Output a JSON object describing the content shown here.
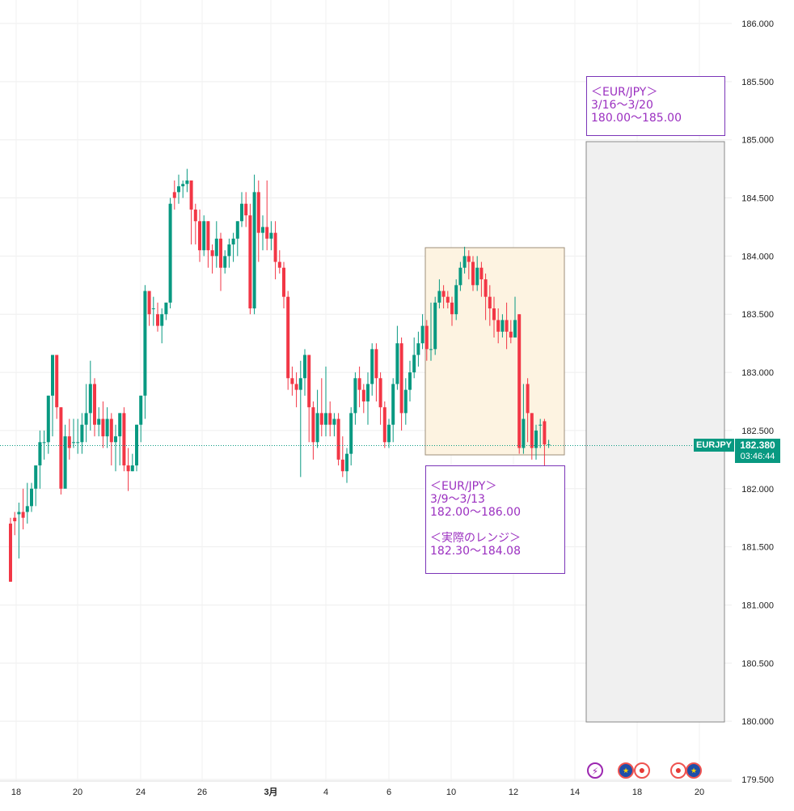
{
  "chart_data": {
    "type": "candlestick",
    "symbol": "EURJPY",
    "last_price": "182.380",
    "countdown": "03:46:44",
    "ylim": [
      179.5,
      186.0
    ],
    "y_ticks": [
      "186.000",
      "185.500",
      "185.000",
      "184.500",
      "184.000",
      "183.500",
      "183.000",
      "182.500",
      "182.000",
      "181.500",
      "181.000",
      "180.500",
      "180.000",
      "179.500"
    ],
    "x_ticks": [
      "18",
      "20",
      "24",
      "26",
      "3月",
      "4",
      "6",
      "10",
      "12",
      "14",
      "18",
      "20"
    ],
    "candles": [
      [
        181.7,
        181.2,
        181.75,
        181.2
      ],
      [
        181.75,
        181.72,
        181.8,
        181.6
      ],
      [
        181.78,
        181.8,
        181.88,
        181.4
      ],
      [
        181.8,
        181.75,
        182.0,
        181.65
      ],
      [
        181.8,
        181.85,
        182.05,
        181.7
      ],
      [
        181.85,
        182.0,
        182.05,
        181.8
      ],
      [
        182.0,
        182.2,
        182.2,
        181.85
      ],
      [
        182.2,
        182.4,
        182.5,
        182.0
      ],
      [
        182.4,
        182.4,
        182.5,
        182.25
      ],
      [
        182.4,
        182.8,
        182.8,
        182.3
      ],
      [
        182.8,
        183.15,
        183.15,
        182.45
      ],
      [
        183.15,
        182.7,
        183.15,
        182.6
      ],
      [
        182.7,
        182.0,
        182.7,
        181.95
      ],
      [
        182.0,
        182.45,
        182.55,
        182.05
      ],
      [
        182.45,
        182.35,
        182.6,
        182.25
      ],
      [
        182.4,
        182.4,
        182.6,
        182.35
      ],
      [
        182.4,
        182.4,
        182.6,
        182.3
      ],
      [
        182.4,
        182.55,
        182.65,
        182.3
      ],
      [
        182.55,
        182.65,
        182.9,
        182.4
      ],
      [
        182.65,
        182.9,
        183.1,
        182.5
      ],
      [
        182.9,
        182.55,
        182.95,
        182.45
      ],
      [
        182.55,
        182.6,
        182.7,
        182.45
      ],
      [
        182.6,
        182.45,
        182.75,
        182.35
      ],
      [
        182.45,
        182.6,
        182.7,
        182.35
      ],
      [
        182.6,
        182.4,
        182.65,
        182.2
      ],
      [
        182.4,
        182.45,
        182.55,
        182.15
      ],
      [
        182.45,
        182.65,
        182.65,
        182.2
      ],
      [
        182.65,
        182.2,
        182.7,
        182.15
      ],
      [
        182.2,
        182.15,
        182.35,
        181.98
      ],
      [
        182.15,
        182.2,
        182.3,
        182.15
      ],
      [
        182.2,
        182.55,
        182.55,
        182.15
      ],
      [
        182.55,
        182.8,
        182.8,
        182.4
      ],
      [
        182.8,
        183.7,
        183.75,
        182.6
      ],
      [
        183.7,
        183.5,
        183.7,
        183.4
      ],
      [
        183.55,
        183.55,
        183.65,
        183.4
      ],
      [
        183.5,
        183.4,
        183.6,
        183.35
      ],
      [
        183.4,
        183.5,
        183.55,
        183.25
      ],
      [
        183.5,
        183.6,
        183.6,
        183.45
      ],
      [
        183.6,
        184.45,
        184.5,
        183.55
      ],
      [
        184.55,
        184.5,
        184.65,
        184.4
      ],
      [
        184.55,
        184.6,
        184.7,
        184.45
      ],
      [
        184.6,
        184.62,
        184.65,
        184.5
      ],
      [
        184.62,
        184.65,
        184.75,
        184.55
      ],
      [
        184.65,
        184.4,
        184.65,
        184.1
      ],
      [
        184.4,
        184.3,
        184.45,
        184.1
      ],
      [
        184.3,
        184.05,
        184.4,
        183.95
      ],
      [
        184.05,
        184.3,
        184.35,
        184.0
      ],
      [
        184.3,
        184.05,
        184.3,
        183.9
      ],
      [
        184.05,
        184.0,
        184.1,
        183.85
      ],
      [
        184.0,
        184.15,
        184.3,
        183.9
      ],
      [
        184.15,
        183.9,
        184.2,
        183.7
      ],
      [
        183.9,
        184.0,
        184.05,
        183.85
      ],
      [
        184.0,
        184.1,
        184.15,
        183.9
      ],
      [
        184.1,
        184.15,
        184.2,
        183.95
      ],
      [
        184.15,
        184.3,
        184.3,
        184.0
      ],
      [
        184.3,
        184.45,
        184.55,
        184.25
      ],
      [
        184.45,
        184.35,
        184.55,
        184.25
      ],
      [
        184.35,
        183.55,
        184.45,
        183.5
      ],
      [
        183.55,
        184.55,
        184.7,
        183.5
      ],
      [
        184.55,
        184.2,
        184.65,
        183.95
      ],
      [
        184.2,
        184.25,
        184.35,
        184.05
      ],
      [
        184.25,
        184.15,
        184.65,
        184.05
      ],
      [
        184.15,
        184.2,
        184.3,
        184.05
      ],
      [
        184.2,
        183.95,
        184.3,
        183.8
      ],
      [
        183.95,
        183.9,
        184.05,
        183.85
      ],
      [
        183.9,
        183.65,
        183.95,
        183.55
      ],
      [
        183.65,
        182.95,
        183.7,
        182.85
      ],
      [
        182.95,
        182.9,
        183.05,
        182.8
      ],
      [
        182.9,
        182.85,
        183.0,
        182.7
      ],
      [
        182.85,
        182.95,
        183.1,
        182.1
      ],
      [
        182.95,
        183.15,
        183.2,
        182.8
      ],
      [
        183.15,
        182.7,
        183.15,
        182.4
      ],
      [
        182.7,
        182.4,
        182.75,
        182.25
      ],
      [
        182.4,
        182.65,
        182.85,
        182.35
      ],
      [
        182.65,
        182.55,
        182.95,
        182.45
      ],
      [
        182.55,
        182.65,
        183.05,
        182.45
      ],
      [
        182.65,
        182.55,
        182.75,
        182.45
      ],
      [
        182.55,
        182.6,
        182.65,
        182.45
      ],
      [
        182.6,
        182.25,
        182.65,
        182.2
      ],
      [
        182.25,
        182.15,
        182.45,
        182.1
      ],
      [
        182.15,
        182.3,
        182.35,
        182.05
      ],
      [
        182.3,
        182.65,
        182.7,
        182.2
      ],
      [
        182.65,
        182.95,
        183.0,
        182.55
      ],
      [
        182.95,
        182.85,
        183.05,
        182.7
      ],
      [
        182.85,
        182.75,
        182.9,
        182.65
      ],
      [
        182.75,
        182.9,
        183.0,
        182.55
      ],
      [
        182.9,
        183.2,
        183.25,
        182.8
      ],
      [
        183.2,
        182.95,
        183.25,
        182.75
      ],
      [
        182.95,
        182.7,
        183.0,
        182.55
      ],
      [
        182.7,
        182.4,
        182.75,
        182.35
      ],
      [
        182.4,
        182.55,
        182.6,
        182.35
      ],
      [
        182.55,
        182.9,
        182.95,
        182.4
      ],
      [
        182.9,
        183.25,
        183.4,
        182.85
      ],
      [
        183.25,
        182.65,
        183.3,
        182.5
      ],
      [
        182.65,
        182.85,
        182.95,
        182.55
      ],
      [
        182.85,
        183.0,
        183.1,
        182.75
      ],
      [
        183.0,
        183.15,
        183.3,
        182.95
      ],
      [
        183.15,
        183.25,
        183.35,
        183.05
      ],
      [
        183.25,
        183.4,
        183.5,
        183.2
      ],
      [
        183.4,
        183.2,
        183.45,
        183.1
      ],
      [
        183.2,
        183.2,
        183.6,
        183.1
      ],
      [
        183.2,
        183.6,
        183.65,
        183.15
      ],
      [
        183.6,
        183.7,
        183.8,
        183.55
      ],
      [
        183.7,
        183.65,
        183.75,
        183.55
      ],
      [
        183.65,
        183.6,
        183.7,
        183.55
      ],
      [
        183.6,
        183.5,
        183.65,
        183.4
      ],
      [
        183.5,
        183.75,
        183.8,
        183.45
      ],
      [
        183.75,
        183.9,
        183.95,
        183.7
      ],
      [
        183.9,
        184.0,
        184.08,
        183.85
      ],
      [
        184.0,
        183.95,
        184.05,
        183.8
      ],
      [
        183.95,
        183.75,
        184.0,
        183.7
      ],
      [
        183.75,
        183.9,
        184.0,
        183.7
      ],
      [
        183.9,
        183.8,
        183.95,
        183.65
      ],
      [
        183.8,
        183.65,
        183.85,
        183.45
      ],
      [
        183.65,
        183.55,
        183.75,
        183.4
      ],
      [
        183.55,
        183.45,
        183.65,
        183.3
      ],
      [
        183.45,
        183.35,
        183.55,
        183.25
      ],
      [
        183.35,
        183.45,
        183.5,
        183.3
      ],
      [
        183.45,
        183.35,
        183.6,
        183.2
      ],
      [
        183.35,
        183.3,
        183.45,
        183.25
      ],
      [
        183.3,
        183.45,
        183.65,
        183.3
      ],
      [
        183.5,
        182.35,
        183.5,
        182.3
      ],
      [
        182.35,
        182.6,
        182.9,
        182.3
      ],
      [
        182.9,
        182.65,
        182.95,
        182.4
      ],
      [
        182.65,
        182.35,
        182.65,
        182.25
      ],
      [
        182.35,
        182.5,
        182.55,
        182.25
      ],
      [
        182.55,
        182.55,
        182.6,
        182.35
      ],
      [
        182.58,
        182.38,
        182.6,
        181.88
      ],
      [
        182.38,
        182.38,
        182.42,
        182.35
      ]
    ]
  },
  "annotations": {
    "forecast": {
      "line1": "＜EUR/JPY＞",
      "line2": "3/16～3/20",
      "line3": "180.00～185.00"
    },
    "weekly": {
      "line1": "＜EUR/JPY＞",
      "line2": "3/9～3/13",
      "line3": "182.00～186.00",
      "line4": "＜実際のレンジ＞",
      "line5": "182.30～184.08"
    }
  },
  "events": {
    "flash": "⚡",
    "eu": "★",
    "jp": "●"
  },
  "colors": {
    "up": "#089981",
    "down": "#f23645",
    "annot_border": "#7b35b8",
    "annot_text": "#9b30c0",
    "range_box": "#fdf3e1",
    "forecast_box": "#f0f0f0"
  }
}
